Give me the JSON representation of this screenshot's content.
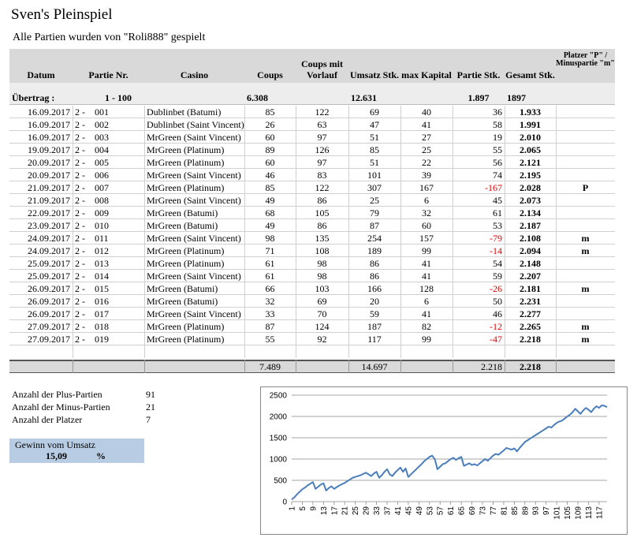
{
  "title": "Sven's Pleinspiel",
  "subtitle": "Alle Partien wurden von \"Roli888\" gespielt",
  "table": {
    "headers": [
      "Datum",
      "Partie Nr.",
      "Casino",
      "Coups",
      "Coups mit Vorlauf",
      "Umsatz Stk.",
      "max Kapital",
      "Partie Stk.",
      "Gesamt Stk.",
      "Platzer \"P\" / Minuspartie \"m\""
    ],
    "carry": {
      "label": "Übertrag :",
      "nr": "1 - 100",
      "coups": "6.308",
      "umsatz": "12.631",
      "partie": "1.897",
      "gesamt": "1897"
    },
    "rows": [
      [
        "16.09.2017",
        "2 -",
        "001",
        "Dublinbet (Batumi)",
        "85",
        "122",
        "69",
        "40",
        "36",
        "1.933"
      ],
      [
        "16.09.2017",
        "2 -",
        "002",
        "Dublinbet (Saint Vincent)",
        "26",
        "63",
        "47",
        "41",
        "58",
        "1.991"
      ],
      [
        "16.09.2017",
        "2 -",
        "003",
        "MrGreen (Saint Vincent)",
        "60",
        "97",
        "51",
        "27",
        "19",
        "2.010"
      ],
      [
        "19.09.2017",
        "2 -",
        "004",
        "MrGreen (Platinum)",
        "89",
        "126",
        "85",
        "25",
        "55",
        "2.065"
      ],
      [
        "20.09.2017",
        "2 -",
        "005",
        "MrGreen (Platinum)",
        "60",
        "97",
        "51",
        "22",
        "56",
        "2.121"
      ],
      [
        "20.09.2017",
        "2 -",
        "006",
        "MrGreen (Saint Vincent)",
        "46",
        "83",
        "101",
        "39",
        "74",
        "2.195"
      ],
      [
        "21.09.2017",
        "2 -",
        "007",
        "MrGreen (Platinum)",
        "85",
        "122",
        "307",
        "167",
        "-167",
        "2.028",
        "P"
      ],
      [
        "21.09.2017",
        "2 -",
        "008",
        "MrGreen (Saint Vincent)",
        "49",
        "86",
        "25",
        "6",
        "45",
        "2.073"
      ],
      [
        "22.09.2017",
        "2 -",
        "009",
        "MrGreen (Batumi)",
        "68",
        "105",
        "79",
        "32",
        "61",
        "2.134"
      ],
      [
        "23.09.2017",
        "2 -",
        "010",
        "MrGreen (Batumi)",
        "49",
        "86",
        "87",
        "60",
        "53",
        "2.187"
      ],
      [
        "24.09.2017",
        "2 -",
        "011",
        "MrGreen (Saint Vincent)",
        "98",
        "135",
        "254",
        "157",
        "-79",
        "2.108",
        "m"
      ],
      [
        "24.09.2017",
        "2 -",
        "012",
        "MrGreen (Platinum)",
        "71",
        "108",
        "189",
        "99",
        "-14",
        "2.094",
        "m"
      ],
      [
        "25.09.2017",
        "2 -",
        "013",
        "MrGreen (Platinum)",
        "61",
        "98",
        "86",
        "41",
        "54",
        "2.148"
      ],
      [
        "25.09.2017",
        "2 -",
        "014",
        "MrGreen (Saint Vincent)",
        "61",
        "98",
        "86",
        "41",
        "59",
        "2.207"
      ],
      [
        "26.09.2017",
        "2 -",
        "015",
        "MrGreen (Batumi)",
        "66",
        "103",
        "166",
        "128",
        "-26",
        "2.181",
        "m"
      ],
      [
        "26.09.2017",
        "2 -",
        "016",
        "MrGreen (Batumi)",
        "32",
        "69",
        "20",
        "6",
        "50",
        "2.231"
      ],
      [
        "26.09.2017",
        "2 -",
        "017",
        "MrGreen (Saint Vincent)",
        "33",
        "70",
        "59",
        "41",
        "46",
        "2.277"
      ],
      [
        "27.09.2017",
        "2 -",
        "018",
        "MrGreen (Platinum)",
        "87",
        "124",
        "187",
        "82",
        "-12",
        "2.265",
        "m"
      ],
      [
        "27.09.2017",
        "2 -",
        "019",
        "MrGreen (Platinum)",
        "55",
        "92",
        "117",
        "99",
        "-47",
        "2.218",
        "m"
      ]
    ],
    "totals": {
      "coups": "7.489",
      "umsatz": "14.697",
      "partie": "2.218",
      "gesamt": "2.218"
    }
  },
  "stats": [
    {
      "label": "Anzahl der Plus-Partien",
      "value": 91
    },
    {
      "label": "Anzahl der Minus-Partien",
      "value": 21
    },
    {
      "label": "Anzahl der Platzer",
      "value": 7
    }
  ],
  "gain": {
    "label": "Gewinn vom Umsatz",
    "value": "15,09",
    "unit": "%"
  },
  "chart_data": {
    "type": "line",
    "color": "#4a7ebb",
    "grid": true,
    "x": [
      1,
      2,
      3,
      4,
      5,
      6,
      7,
      8,
      9,
      10,
      11,
      12,
      13,
      14,
      15,
      16,
      17,
      18,
      19,
      20,
      21,
      22,
      23,
      24,
      25,
      26,
      27,
      28,
      29,
      30,
      31,
      32,
      33,
      34,
      35,
      36,
      37,
      38,
      39,
      40,
      41,
      42,
      43,
      44,
      45,
      46,
      47,
      48,
      49,
      50,
      51,
      52,
      53,
      54,
      55,
      56,
      57,
      58,
      59,
      60,
      61,
      62,
      63,
      64,
      65,
      66,
      67,
      68,
      69,
      70,
      71,
      72,
      73,
      74,
      75,
      76,
      77,
      78,
      79,
      80,
      81,
      82,
      83,
      84,
      85,
      86,
      87,
      88,
      89,
      90,
      91,
      92,
      93,
      94,
      95,
      96,
      97,
      98,
      99,
      100,
      101,
      102,
      103,
      104,
      105,
      106,
      107,
      108,
      109,
      110,
      111,
      112,
      113,
      114,
      115,
      116,
      117,
      118,
      119,
      120
    ],
    "values": [
      50,
      100,
      170,
      230,
      290,
      330,
      380,
      420,
      460,
      300,
      350,
      400,
      430,
      260,
      320,
      360,
      300,
      340,
      380,
      410,
      440,
      480,
      520,
      560,
      580,
      600,
      620,
      650,
      680,
      640,
      600,
      660,
      700,
      560,
      620,
      700,
      760,
      640,
      600,
      680,
      740,
      800,
      700,
      780,
      580,
      640,
      700,
      760,
      820,
      880,
      950,
      1000,
      1050,
      1080,
      1000,
      760,
      820,
      880,
      900,
      950,
      1000,
      1030,
      980,
      1020,
      1050,
      840,
      870,
      900,
      860,
      880,
      850,
      900,
      950,
      1000,
      960,
      1020,
      1080,
      1120,
      1100,
      1150,
      1200,
      1260,
      1240,
      1220,
      1250,
      1180,
      1260,
      1330,
      1400,
      1440,
      1480,
      1520,
      1560,
      1600,
      1640,
      1680,
      1720,
      1760,
      1740,
      1800,
      1850,
      1880,
      1900,
      1950,
      2000,
      2040,
      2100,
      2180,
      2120,
      2060,
      2140,
      2200,
      2160,
      2100,
      2180,
      2240,
      2200,
      2260,
      2250,
      2218
    ],
    "xlim": [
      1,
      120
    ],
    "xticks": [
      1,
      5,
      9,
      13,
      17,
      21,
      25,
      29,
      33,
      37,
      41,
      45,
      49,
      53,
      57,
      61,
      65,
      69,
      73,
      77,
      81,
      85,
      89,
      93,
      97,
      101,
      105,
      109,
      113,
      117
    ],
    "ylim": [
      0,
      2500
    ],
    "yticks": [
      0,
      500,
      1000,
      1500,
      2000,
      2500
    ]
  }
}
